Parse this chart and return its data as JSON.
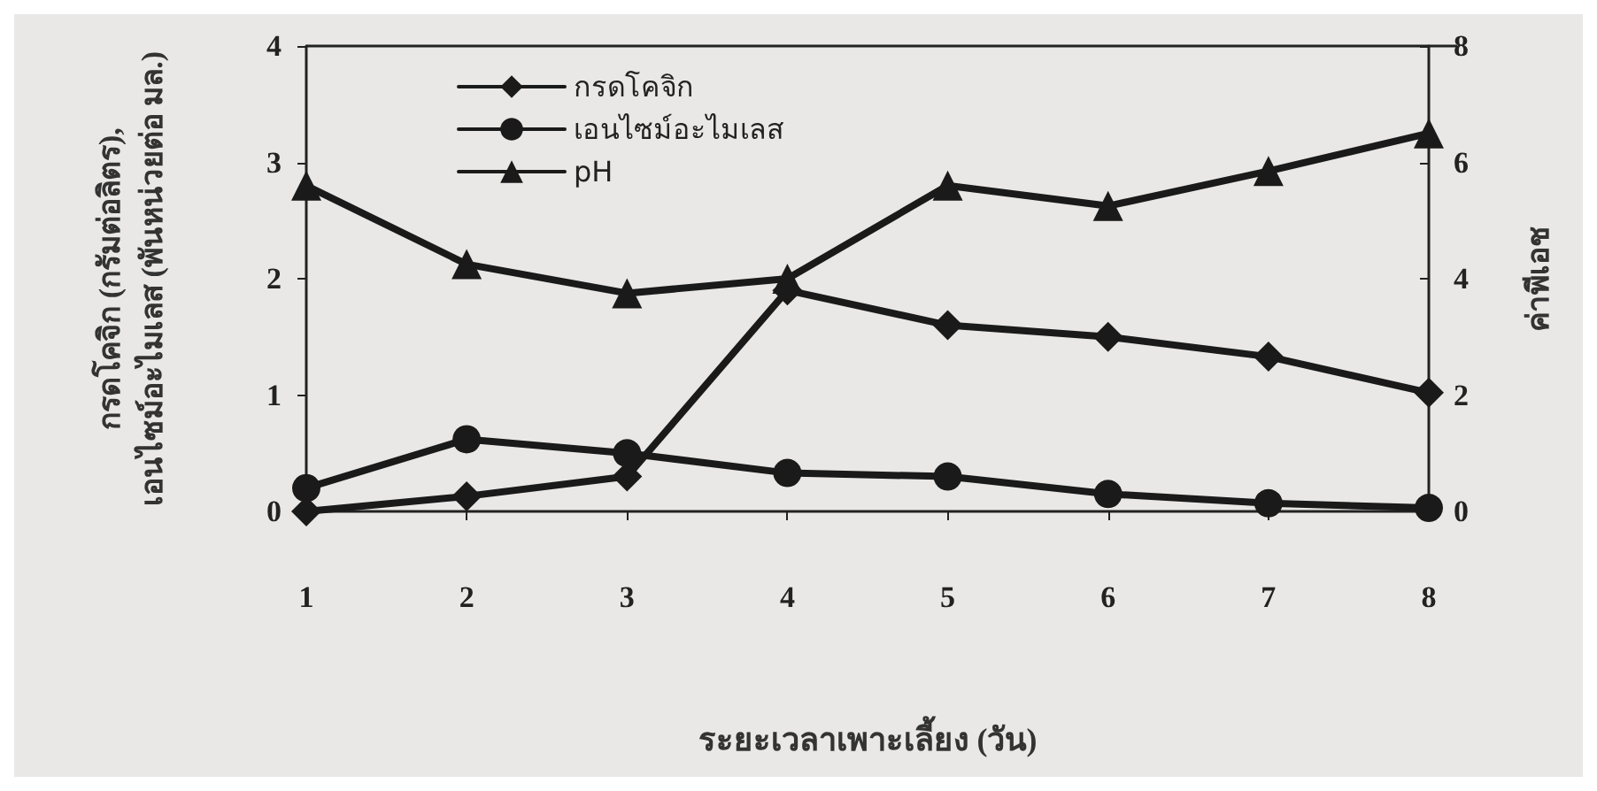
{
  "chart_data": {
    "type": "line",
    "xlabel": "ระยะเวลาเพาะเลี้ยง (วัน)",
    "ylabel": "กรดโคจิก (กรัมต่อลิตร),\nเอนไซม์อะไมเลส (พันหน่วยต่อ มล.)",
    "y2label": "ค่าพีเอช",
    "categories": [
      "1",
      "2",
      "3",
      "4",
      "5",
      "6",
      "7",
      "8"
    ],
    "series": [
      {
        "name": "กรดโคจิก",
        "color": "#1a1a1a",
        "marker": "diamond",
        "values": [
          0,
          0.13,
          0.3,
          1.9,
          1.6,
          1.5,
          1.33,
          1.02
        ]
      },
      {
        "name": "เอนไซม์อะไมเลส",
        "color": "#1a1a1a",
        "marker": "circle",
        "values": [
          0.2,
          0.62,
          0.5,
          0.33,
          0.3,
          0.15,
          0.07,
          0.03
        ]
      },
      {
        "name": "pH",
        "color": "#1a1a1a",
        "marker": "triangle",
        "axis": "y2",
        "values": [
          5.6,
          4.25,
          3.75,
          4.0,
          5.6,
          5.25,
          5.85,
          6.5
        ]
      }
    ],
    "ylim": [
      0,
      4
    ],
    "yticks": [
      0,
      1,
      2,
      3,
      4
    ],
    "y2lim": [
      0,
      8
    ],
    "y2ticks": [
      0,
      2,
      4,
      6,
      8
    ],
    "grid": false,
    "legend": "top left",
    "line_style": "solid"
  }
}
